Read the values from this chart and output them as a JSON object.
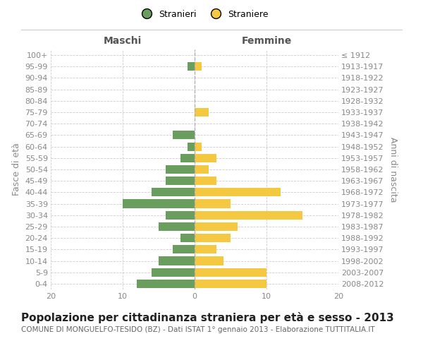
{
  "age_groups": [
    "0-4",
    "5-9",
    "10-14",
    "15-19",
    "20-24",
    "25-29",
    "30-34",
    "35-39",
    "40-44",
    "45-49",
    "50-54",
    "55-59",
    "60-64",
    "65-69",
    "70-74",
    "75-79",
    "80-84",
    "85-89",
    "90-94",
    "95-99",
    "100+"
  ],
  "birth_years": [
    "2008-2012",
    "2003-2007",
    "1998-2002",
    "1993-1997",
    "1988-1992",
    "1983-1987",
    "1978-1982",
    "1973-1977",
    "1968-1972",
    "1963-1967",
    "1958-1962",
    "1953-1957",
    "1948-1952",
    "1943-1947",
    "1938-1942",
    "1933-1937",
    "1928-1932",
    "1923-1927",
    "1918-1922",
    "1913-1917",
    "≤ 1912"
  ],
  "maschi": [
    8,
    6,
    5,
    3,
    2,
    5,
    4,
    10,
    6,
    4,
    4,
    2,
    1,
    3,
    0,
    0,
    0,
    0,
    0,
    1,
    0
  ],
  "femmine": [
    10,
    10,
    4,
    3,
    5,
    6,
    15,
    5,
    12,
    3,
    2,
    3,
    1,
    0,
    0,
    2,
    0,
    0,
    0,
    1,
    0
  ],
  "color_maschi": "#6a9e5e",
  "color_femmine": "#f5c842",
  "title": "Popolazione per cittadinanza straniera per età e sesso - 2013",
  "subtitle": "COMUNE DI MONGUELFO-TESIDO (BZ) - Dati ISTAT 1° gennaio 2013 - Elaborazione TUTTITALIA.IT",
  "ylabel_left": "Fasce di età",
  "ylabel_right": "Anni di nascita",
  "header_maschi": "Maschi",
  "header_femmine": "Femmine",
  "legend_stranieri": "Stranieri",
  "legend_straniere": "Straniere",
  "xlim": 20,
  "bg_color": "#ffffff",
  "grid_color": "#cccccc",
  "tick_color": "#888888",
  "title_fontsize": 11,
  "subtitle_fontsize": 7.5,
  "axis_label_fontsize": 9,
  "tick_fontsize": 8,
  "header_fontsize": 10
}
